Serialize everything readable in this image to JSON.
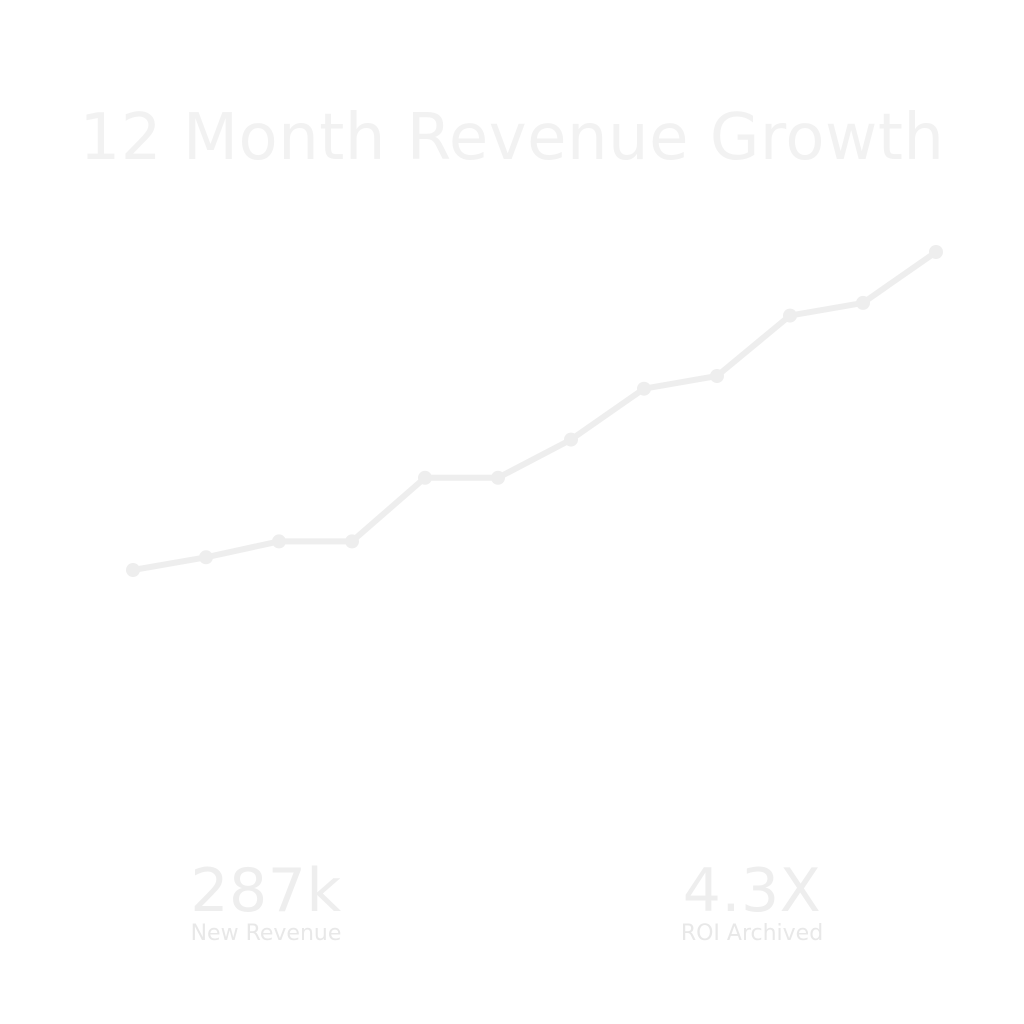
{
  "title": "12 Month Revenue Growth",
  "colors": {
    "background": "#ffffff",
    "title": "#f2f2f2",
    "line": "#eeeeee",
    "stat_value": "#eeeeee",
    "stat_label": "#e8e8e8"
  },
  "chart_data": {
    "type": "line",
    "title": "12 Month Revenue Growth",
    "xlabel": "",
    "ylabel": "",
    "x": [
      1,
      2,
      3,
      4,
      5,
      6,
      7,
      8,
      9,
      10,
      11,
      12
    ],
    "series": [
      {
        "values": [
          5.0,
          5.4,
          5.9,
          5.9,
          7.9,
          7.9,
          9.1,
          10.7,
          11.1,
          13.0,
          13.4,
          15.0
        ]
      }
    ],
    "ylim": [
      0,
      15
    ],
    "grid": false,
    "markers": true
  },
  "stats": [
    {
      "value": "287k",
      "label": "New Revenue"
    },
    {
      "value": "4.3X",
      "label": "ROI Archived"
    }
  ]
}
